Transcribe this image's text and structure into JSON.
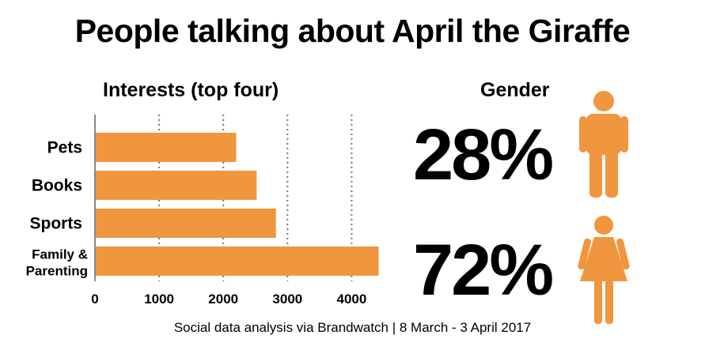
{
  "title": "People talking about April the Giraffe",
  "interests": {
    "subtitle": "Interests (top four)"
  },
  "gender": {
    "subtitle": "Gender",
    "male_pct": "28%",
    "female_pct": "72%",
    "male_icon": "male-figure-icon",
    "female_icon": "female-figure-icon",
    "icon_color": "#F0963F"
  },
  "source": "Social data analysis via Brandwatch | 8 March - 3 April 2017",
  "chart_data": {
    "type": "bar",
    "orientation": "horizontal",
    "categories": [
      "Pets",
      "Books",
      "Sports",
      [
        "Family &",
        "Parenting"
      ]
    ],
    "values": [
      2200,
      2520,
      2820,
      4420
    ],
    "xlim": [
      0,
      4500
    ],
    "xticks": [
      0,
      1000,
      2000,
      3000,
      4000
    ],
    "grid": "vertical dotted",
    "bar_color": "#F0963F"
  }
}
